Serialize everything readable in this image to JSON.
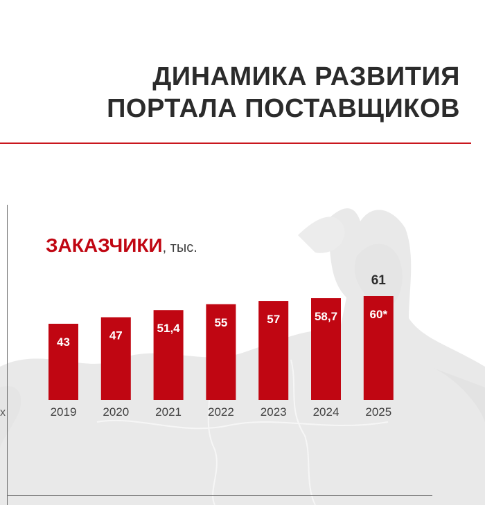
{
  "page": {
    "title_lines": [
      "ДИНАМИКА РАЗВИТИЯ",
      "ПОРТАЛА ПОСТАВЩИКОВ"
    ],
    "edge_text": "x"
  },
  "colors": {
    "accent": "#c00612",
    "bar_label": "#ffffff",
    "text_dark": "#2b2b2b",
    "axis_text": "#404040",
    "map": "#e9e9e9"
  },
  "chart_data": {
    "type": "bar",
    "title": "ЗАКАЗЧИКИ",
    "title_unit": ", тыс.",
    "categories": [
      "2019",
      "2020",
      "2021",
      "2022",
      "2023",
      "2024",
      "2025"
    ],
    "values": [
      43,
      47,
      51.4,
      55,
      57,
      58.7,
      60
    ],
    "value_labels": [
      "43",
      "47",
      "51,4",
      "55",
      "57",
      "58,7",
      "60*"
    ],
    "annotations": [
      {
        "category": "2025",
        "text": "61"
      }
    ],
    "xlabel": "",
    "ylabel": "",
    "ylim": [
      0,
      61
    ],
    "grid": false,
    "legend": "none"
  }
}
